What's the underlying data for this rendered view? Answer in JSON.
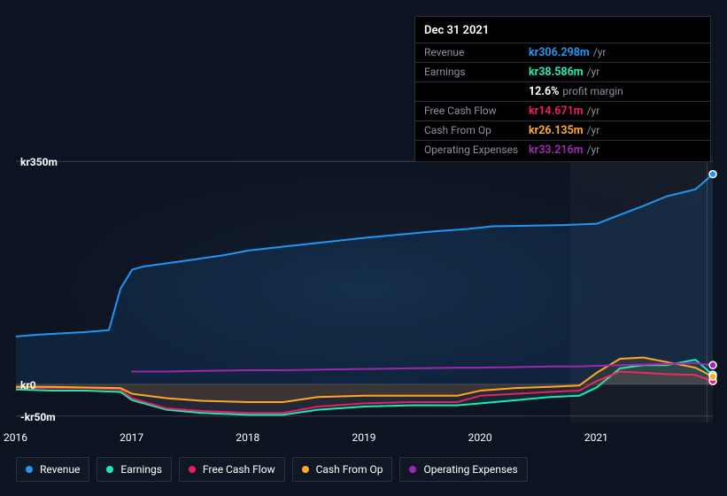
{
  "chart": {
    "type": "line-area",
    "background_color": "#0d1421",
    "plot_background": "#0d1421",
    "highlight_band_color": "rgba(255,255,255,0.04)",
    "grid_color": "#3a4252",
    "axis_label_color": "#ffffff",
    "xlim": [
      2016,
      2022
    ],
    "x_ticks": [
      2016,
      2017,
      2018,
      2019,
      2020,
      2021
    ],
    "x_tick_labels": [
      "2016",
      "2017",
      "2018",
      "2019",
      "2020",
      "2021"
    ],
    "ylim": [
      -60,
      360
    ],
    "y_ticks": [
      350,
      0,
      -50
    ],
    "y_tick_labels": [
      "kr350m",
      "kr0",
      "-kr50m"
    ],
    "cursor_x": 2021.95,
    "series": [
      {
        "key": "revenue",
        "label": "Revenue",
        "color": "#2196f3",
        "line_width": 2,
        "fill_opacity": 0.12,
        "points": [
          [
            2016.0,
            75
          ],
          [
            2016.2,
            78
          ],
          [
            2016.4,
            80
          ],
          [
            2016.6,
            82
          ],
          [
            2016.8,
            85
          ],
          [
            2016.9,
            150
          ],
          [
            2017.0,
            180
          ],
          [
            2017.1,
            185
          ],
          [
            2017.3,
            190
          ],
          [
            2017.5,
            195
          ],
          [
            2017.8,
            203
          ],
          [
            2018.0,
            210
          ],
          [
            2018.3,
            216
          ],
          [
            2018.6,
            222
          ],
          [
            2019.0,
            230
          ],
          [
            2019.3,
            235
          ],
          [
            2019.6,
            240
          ],
          [
            2019.9,
            244
          ],
          [
            2020.1,
            248
          ],
          [
            2020.4,
            249
          ],
          [
            2020.7,
            250
          ],
          [
            2021.0,
            252
          ],
          [
            2021.2,
            266
          ],
          [
            2021.4,
            280
          ],
          [
            2021.6,
            295
          ],
          [
            2021.85,
            306
          ],
          [
            2022.0,
            330
          ]
        ]
      },
      {
        "key": "earnings",
        "label": "Earnings",
        "color": "#1de9b6",
        "line_width": 2,
        "fill_opacity": 0.1,
        "points": [
          [
            2016.0,
            -8
          ],
          [
            2016.3,
            -10
          ],
          [
            2016.6,
            -10
          ],
          [
            2016.9,
            -12
          ],
          [
            2017.0,
            -25
          ],
          [
            2017.3,
            -40
          ],
          [
            2017.6,
            -45
          ],
          [
            2018.0,
            -48
          ],
          [
            2018.3,
            -48
          ],
          [
            2018.6,
            -40
          ],
          [
            2019.0,
            -35
          ],
          [
            2019.4,
            -33
          ],
          [
            2019.8,
            -33
          ],
          [
            2020.0,
            -30
          ],
          [
            2020.3,
            -25
          ],
          [
            2020.6,
            -20
          ],
          [
            2020.85,
            -18
          ],
          [
            2021.0,
            -5
          ],
          [
            2021.2,
            25
          ],
          [
            2021.4,
            30
          ],
          [
            2021.6,
            30
          ],
          [
            2021.85,
            38.6
          ],
          [
            2022.0,
            15
          ]
        ]
      },
      {
        "key": "fcf",
        "label": "Free Cash Flow",
        "color": "#e91e63",
        "line_width": 2,
        "fill_opacity": 0.1,
        "points": [
          [
            2016.0,
            -5
          ],
          [
            2016.3,
            -6
          ],
          [
            2016.6,
            -6
          ],
          [
            2016.9,
            -8
          ],
          [
            2017.0,
            -22
          ],
          [
            2017.3,
            -38
          ],
          [
            2017.6,
            -42
          ],
          [
            2018.0,
            -45
          ],
          [
            2018.3,
            -45
          ],
          [
            2018.6,
            -35
          ],
          [
            2019.0,
            -30
          ],
          [
            2019.4,
            -28
          ],
          [
            2019.8,
            -28
          ],
          [
            2020.0,
            -18
          ],
          [
            2020.3,
            -15
          ],
          [
            2020.6,
            -12
          ],
          [
            2020.85,
            -10
          ],
          [
            2021.0,
            5
          ],
          [
            2021.2,
            20
          ],
          [
            2021.4,
            18
          ],
          [
            2021.6,
            16
          ],
          [
            2021.85,
            14.7
          ],
          [
            2022.0,
            5
          ]
        ]
      },
      {
        "key": "cfo",
        "label": "Cash From Op",
        "color": "#ffa726",
        "line_width": 2,
        "fill_opacity": 0.1,
        "points": [
          [
            2016.0,
            -4
          ],
          [
            2016.3,
            -4
          ],
          [
            2016.6,
            -5
          ],
          [
            2016.9,
            -6
          ],
          [
            2017.0,
            -15
          ],
          [
            2017.3,
            -22
          ],
          [
            2017.6,
            -26
          ],
          [
            2018.0,
            -28
          ],
          [
            2018.3,
            -28
          ],
          [
            2018.6,
            -20
          ],
          [
            2019.0,
            -18
          ],
          [
            2019.4,
            -18
          ],
          [
            2019.8,
            -18
          ],
          [
            2020.0,
            -10
          ],
          [
            2020.3,
            -6
          ],
          [
            2020.6,
            -4
          ],
          [
            2020.85,
            -2
          ],
          [
            2021.0,
            18
          ],
          [
            2021.2,
            40
          ],
          [
            2021.4,
            42
          ],
          [
            2021.6,
            35
          ],
          [
            2021.85,
            26.1
          ],
          [
            2022.0,
            12
          ]
        ]
      },
      {
        "key": "opex",
        "label": "Operating Expenses",
        "color": "#9c27b0",
        "line_width": 2,
        "fill_opacity": 0.0,
        "points": [
          [
            2017.0,
            20
          ],
          [
            2017.3,
            20
          ],
          [
            2017.6,
            21
          ],
          [
            2018.0,
            22
          ],
          [
            2018.3,
            22
          ],
          [
            2018.6,
            23
          ],
          [
            2019.0,
            24
          ],
          [
            2019.4,
            25
          ],
          [
            2019.8,
            26
          ],
          [
            2020.0,
            26
          ],
          [
            2020.3,
            27
          ],
          [
            2020.6,
            28
          ],
          [
            2020.85,
            28
          ],
          [
            2021.0,
            29
          ],
          [
            2021.2,
            30
          ],
          [
            2021.4,
            31
          ],
          [
            2021.6,
            32
          ],
          [
            2021.85,
            33.2
          ],
          [
            2022.0,
            30
          ]
        ]
      }
    ]
  },
  "tooltip": {
    "date": "Dec 31 2021",
    "rows": [
      {
        "label": "Revenue",
        "value": "kr306.298m",
        "unit": "/yr",
        "color": "#2196f3"
      },
      {
        "label": "Earnings",
        "value": "kr38.586m",
        "unit": "/yr",
        "color": "#1de9b6"
      },
      {
        "label": "",
        "value": "12.6%",
        "unit": "profit margin",
        "color": "#ffffff"
      },
      {
        "label": "Free Cash Flow",
        "value": "kr14.671m",
        "unit": "/yr",
        "color": "#e91e63"
      },
      {
        "label": "Cash From Op",
        "value": "kr26.135m",
        "unit": "/yr",
        "color": "#ffa726"
      },
      {
        "label": "Operating Expenses",
        "value": "kr33.216m",
        "unit": "/yr",
        "color": "#9c27b0"
      }
    ]
  },
  "legend": {
    "items": [
      {
        "label": "Revenue",
        "color": "#2196f3"
      },
      {
        "label": "Earnings",
        "color": "#1de9b6"
      },
      {
        "label": "Free Cash Flow",
        "color": "#e91e63"
      },
      {
        "label": "Cash From Op",
        "color": "#ffa726"
      },
      {
        "label": "Operating Expenses",
        "color": "#9c27b0"
      }
    ]
  }
}
